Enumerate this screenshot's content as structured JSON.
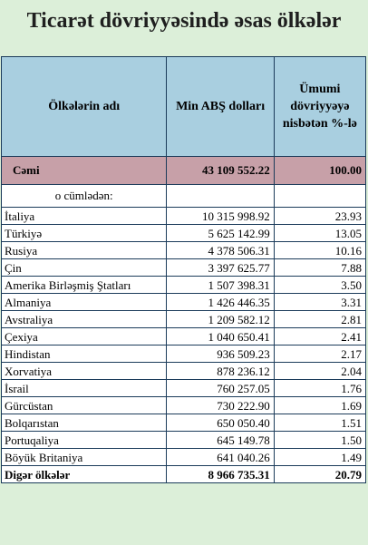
{
  "title": "Ticarət dövriyyəsində əsas ölkələr",
  "colors": {
    "header_bg": "#a9cfe0",
    "total_bg": "#c7a0a8",
    "page_bg": "#dcefd9"
  },
  "table": {
    "headers": [
      "Ölkələrin adı",
      "Min ABŞ dolları",
      "Ümumi dövriyyəyə nisbətən %-lə"
    ],
    "total": {
      "label": "Cəmi",
      "value": "43 109 552.22",
      "percent": "100.00"
    },
    "subheading": "o cümlədən:",
    "rows": [
      {
        "country": "İtaliya",
        "value": "10 315 998.92",
        "percent": "23.93"
      },
      {
        "country": "Türkiyə",
        "value": "5 625 142.99",
        "percent": "13.05"
      },
      {
        "country": "Rusiya",
        "value": "4 378 506.31",
        "percent": "10.16"
      },
      {
        "country": "Çin",
        "value": "3 397 625.77",
        "percent": "7.88"
      },
      {
        "country": "Amerika Birləşmiş Ştatları",
        "value": "1 507 398.31",
        "percent": "3.50"
      },
      {
        "country": "Almaniya",
        "value": "1 426 446.35",
        "percent": "3.31"
      },
      {
        "country": "Avstraliya",
        "value": "1 209 582.12",
        "percent": "2.81"
      },
      {
        "country": "Çexiya",
        "value": "1 040 650.41",
        "percent": "2.41"
      },
      {
        "country": "Hindistan",
        "value": "936 509.23",
        "percent": "2.17"
      },
      {
        "country": "Xorvatiya",
        "value": "878 236.12",
        "percent": "2.04"
      },
      {
        "country": "İsrail",
        "value": "760 257.05",
        "percent": "1.76"
      },
      {
        "country": "Gürcüstan",
        "value": "730 222.90",
        "percent": "1.69"
      },
      {
        "country": "Bolqarıstan",
        "value": "650 050.40",
        "percent": "1.51"
      },
      {
        "country": "Portuqaliya",
        "value": "645 149.78",
        "percent": "1.50"
      },
      {
        "country": "Böyük Britaniya",
        "value": "641 040.26",
        "percent": "1.49"
      }
    ],
    "other": {
      "label": "Digər ölkələr",
      "value": "8 966 735.31",
      "percent": "20.79"
    }
  }
}
